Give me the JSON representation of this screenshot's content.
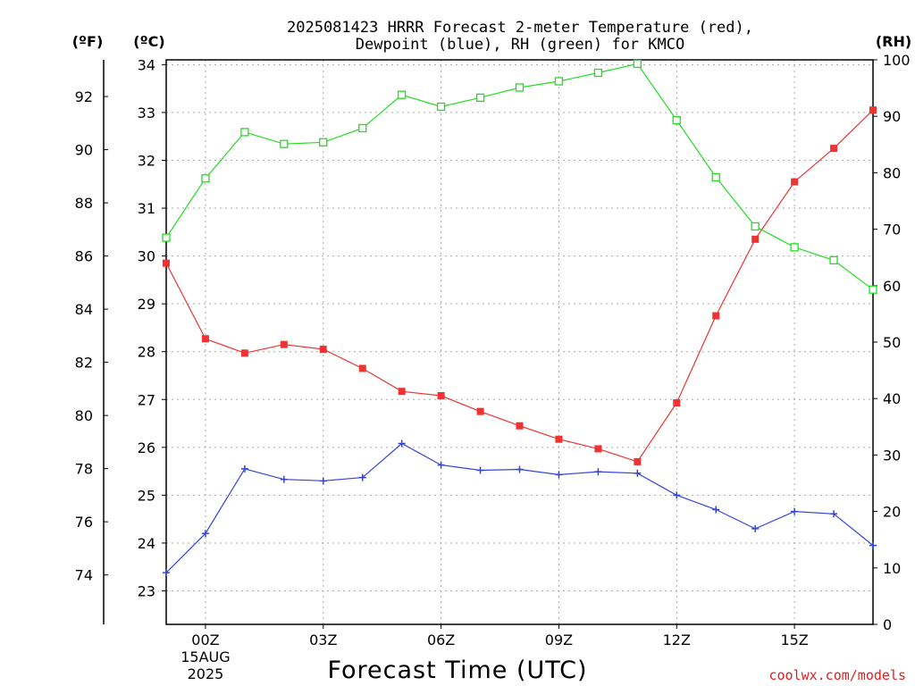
{
  "chart_data": {
    "type": "line",
    "title_line1": "2025081423 HRRR Forecast 2-meter Temperature (red),",
    "title_line2": "Dewpoint (blue), RH (green) for KMCO",
    "xlabel": "Forecast Time (UTC)",
    "credit": "coolwx.com/models",
    "units": {
      "fahrenheit": "(ºF)",
      "celsius": "(ºC)",
      "rh": "(RH)"
    },
    "x": [
      -1,
      0,
      1,
      2,
      3,
      4,
      5,
      6,
      7,
      8,
      9,
      10,
      11,
      12,
      13,
      14,
      15,
      16,
      17
    ],
    "xlim": [
      -1,
      17
    ],
    "x_ticks": [
      {
        "x": 0,
        "label": "00Z",
        "sub1": "15AUG",
        "sub2": "2025"
      },
      {
        "x": 3,
        "label": "03Z"
      },
      {
        "x": 6,
        "label": "06Z"
      },
      {
        "x": 9,
        "label": "09Z"
      },
      {
        "x": 12,
        "label": "12Z"
      },
      {
        "x": 15,
        "label": "15Z"
      }
    ],
    "celsius_axis": {
      "lim": [
        22.3,
        34.1
      ],
      "ticks": [
        23,
        24,
        25,
        26,
        27,
        28,
        29,
        30,
        31,
        32,
        33,
        34
      ]
    },
    "fahrenheit_ticks": [
      74,
      76,
      78,
      80,
      82,
      84,
      86,
      88,
      90,
      92
    ],
    "rh_axis": {
      "lim": [
        0,
        100
      ],
      "ticks": [
        0,
        10,
        20,
        30,
        40,
        50,
        60,
        70,
        80,
        90,
        100
      ]
    },
    "grid": true,
    "series": [
      {
        "key": "temperature",
        "axis": "celsius",
        "color": "#ee3333",
        "marker": "filled-square",
        "values": [
          29.85,
          28.27,
          27.97,
          28.15,
          28.05,
          27.65,
          27.17,
          27.08,
          26.75,
          26.45,
          26.17,
          25.97,
          25.7,
          26.93,
          28.75,
          30.35,
          31.55,
          32.25,
          33.05
        ]
      },
      {
        "key": "dewpoint",
        "axis": "celsius",
        "color": "#3344dd",
        "marker": "plus",
        "values": [
          23.38,
          24.2,
          25.55,
          25.33,
          25.3,
          25.37,
          26.08,
          25.63,
          25.52,
          25.54,
          25.43,
          25.49,
          25.46,
          25.0,
          24.7,
          24.3,
          24.66,
          24.61,
          23.95
        ]
      },
      {
        "key": "rh",
        "axis": "rh",
        "color": "#22dd22",
        "marker": "open-square",
        "values": [
          68.5,
          79,
          87.2,
          85.1,
          85.4,
          87.9,
          93.8,
          91.7,
          93.3,
          95.1,
          96.2,
          97.7,
          99.3,
          89.3,
          79.2,
          70.5,
          66.8,
          64.5,
          59.3
        ]
      }
    ]
  }
}
